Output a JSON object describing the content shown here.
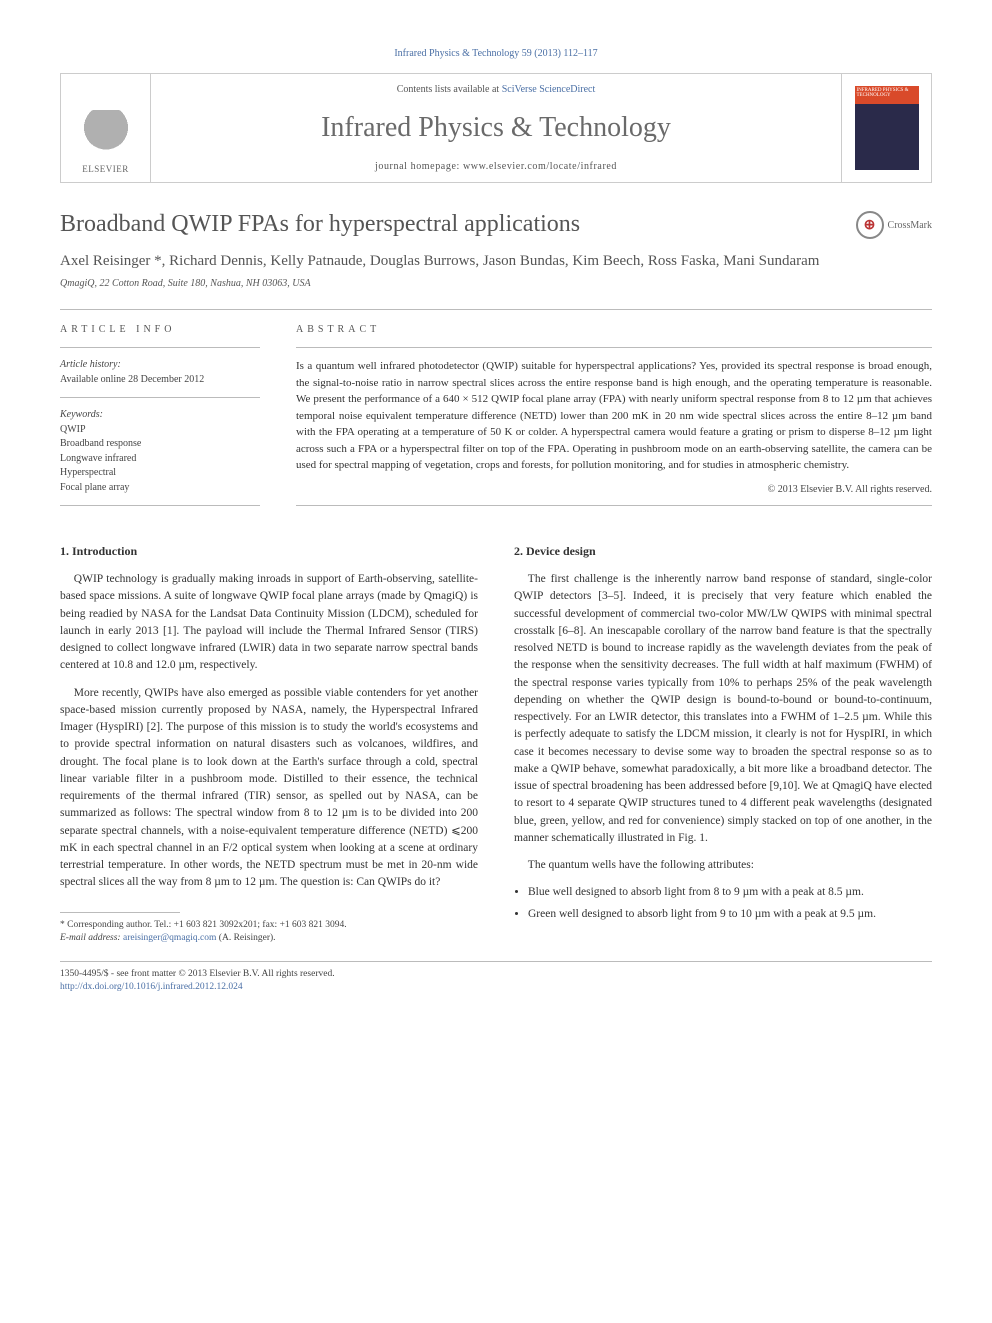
{
  "citation": "Infrared Physics & Technology 59 (2013) 112–117",
  "contents_line_prefix": "Contents lists available at ",
  "contents_link": "SciVerse ScienceDirect",
  "journal_name": "Infrared Physics & Technology",
  "homepage_prefix": "journal homepage: ",
  "homepage_url": "www.elsevier.com/locate/infrared",
  "elsevier_label": "ELSEVIER",
  "cover_caption": "INFRARED PHYSICS & TECHNOLOGY",
  "crossmark_label": "CrossMark",
  "title": "Broadband QWIP FPAs for hyperspectral applications",
  "authors": "Axel Reisinger *, Richard Dennis, Kelly Patnaude, Douglas Burrows, Jason Bundas, Kim Beech, Ross Faska, Mani Sundaram",
  "affiliation": "QmagiQ, 22 Cotton Road, Suite 180, Nashua, NH 03063, USA",
  "info": {
    "label": "ARTICLE INFO",
    "history_head": "Article history:",
    "history_line": "Available online 28 December 2012",
    "keywords_head": "Keywords:",
    "keywords": [
      "QWIP",
      "Broadband response",
      "Longwave infrared",
      "Hyperspectral",
      "Focal plane array"
    ]
  },
  "abstract": {
    "label": "ABSTRACT",
    "text": "Is a quantum well infrared photodetector (QWIP) suitable for hyperspectral applications? Yes, provided its spectral response is broad enough, the signal-to-noise ratio in narrow spectral slices across the entire response band is high enough, and the operating temperature is reasonable. We present the performance of a 640 × 512 QWIP focal plane array (FPA) with nearly uniform spectral response from 8 to 12 µm that achieves temporal noise equivalent temperature difference (NETD) lower than 200 mK in 20 nm wide spectral slices across the entire 8–12 µm band with the FPA operating at a temperature of 50 K or colder. A hyperspectral camera would feature a grating or prism to disperse 8–12 µm light across such a FPA or a hyperspectral filter on top of the FPA. Operating in pushbroom mode on an earth-observing satellite, the camera can be used for spectral mapping of vegetation, crops and forests, for pollution monitoring, and for studies in atmospheric chemistry.",
    "copyright": "© 2013 Elsevier B.V. All rights reserved."
  },
  "sections": {
    "s1": {
      "heading": "1. Introduction",
      "p1": "QWIP technology is gradually making inroads in support of Earth-observing, satellite-based space missions. A suite of longwave QWIP focal plane arrays (made by QmagiQ) is being readied by NASA for the Landsat Data Continuity Mission (LDCM), scheduled for launch in early 2013 [1]. The payload will include the Thermal Infrared Sensor (TIRS) designed to collect longwave infrared (LWIR) data in two separate narrow spectral bands centered at 10.8 and 12.0 µm, respectively.",
      "p2": "More recently, QWIPs have also emerged as possible viable contenders for yet another space-based mission currently proposed by NASA, namely, the Hyperspectral Infrared Imager (HyspIRI) [2]. The purpose of this mission is to study the world's ecosystems and to provide spectral information on natural disasters such as volcanoes, wildfires, and drought. The focal plane is to look down at the Earth's surface through a cold, spectral linear variable filter in a pushbroom mode. Distilled to their essence, the technical requirements of the thermal infrared (TIR) sensor, as spelled out by NASA, can be summarized as follows: The spectral window from 8 to 12 µm is to be divided into 200 separate spectral channels, with a noise-equivalent temperature difference (NETD) ⩽200 mK in each spectral channel in an F/2 optical system when looking at a scene at ordinary terrestrial temperature. In other words, the NETD spectrum must be met in 20-nm wide spectral slices all the way from 8 µm to 12 µm. The question is: Can QWIPs do it?"
    },
    "s2": {
      "heading": "2. Device design",
      "p1": "The first challenge is the inherently narrow band response of standard, single-color QWIP detectors [3–5]. Indeed, it is precisely that very feature which enabled the successful development of commercial two-color MW/LW QWIPS with minimal spectral crosstalk [6–8]. An inescapable corollary of the narrow band feature is that the spectrally resolved NETD is bound to increase rapidly as the wavelength deviates from the peak of the response when the sensitivity decreases. The full width at half maximum (FWHM) of the spectral response varies typically from 10% to perhaps 25% of the peak wavelength depending on whether the QWIP design is bound-to-bound or bound-to-continuum, respectively. For an LWIR detector, this translates into a FWHM of 1–2.5 µm. While this is perfectly adequate to satisfy the LDCM mission, it clearly is not for HyspIRI, in which case it becomes necessary to devise some way to broaden the spectral response so as to make a QWIP behave, somewhat paradoxically, a bit more like a broadband detector. The issue of spectral broadening has been addressed before [9,10]. We at QmagiQ have elected to resort to 4 separate QWIP structures tuned to 4 different peak wavelengths (designated blue, green, yellow, and red for convenience) simply stacked on top of one another, in the manner schematically illustrated in Fig. 1.",
      "p2": "The quantum wells have the following attributes:",
      "b1": "Blue well designed to absorb light from 8 to 9 µm with a peak at 8.5 µm.",
      "b2": "Green well designed to absorb light from 9 to 10 µm with a peak at 9.5 µm."
    }
  },
  "footnote": {
    "corr": "* Corresponding author. Tel.: +1 603 821 3092x201; fax: +1 603 821 3094.",
    "email_label": "E-mail address:",
    "email": "areisinger@qmagiq.com",
    "email_suffix": " (A. Reisinger)."
  },
  "bottom": {
    "line1": "1350-4495/$ - see front matter © 2013 Elsevier B.V. All rights reserved.",
    "doi": "http://dx.doi.org/10.1016/j.infrared.2012.12.024"
  },
  "colors": {
    "link": "#4a6fa5",
    "heading_gray": "#555555",
    "rule": "#bbbbbb",
    "cover_top": "#d94a2a",
    "cover_body": "#2a2a4a"
  }
}
